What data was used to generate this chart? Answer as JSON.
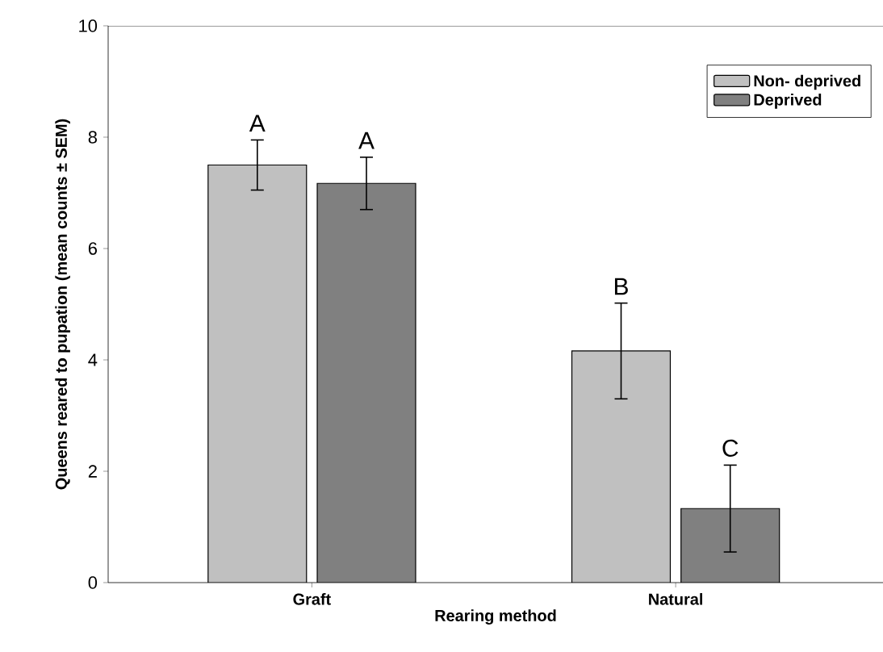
{
  "chart_data": {
    "type": "bar",
    "xlabel": "Rearing method",
    "ylabel": "Queens reared to pupation (mean counts ± SEM)",
    "categories": [
      "Graft",
      "Natural"
    ],
    "series": [
      {
        "name": "Non- deprived",
        "color": "#c0c0c0",
        "values": [
          7.5,
          4.16
        ],
        "errors": [
          0.45,
          0.86
        ]
      },
      {
        "name": "Deprived",
        "color": "#808080",
        "values": [
          7.17,
          1.33
        ],
        "errors": [
          0.47,
          0.78
        ]
      }
    ],
    "ylim": [
      0,
      10
    ],
    "yticks": [
      0,
      2,
      4,
      6,
      8,
      10
    ],
    "legend": "top right",
    "grid": false,
    "annotations": [
      "A",
      "A",
      "B",
      "C"
    ]
  }
}
